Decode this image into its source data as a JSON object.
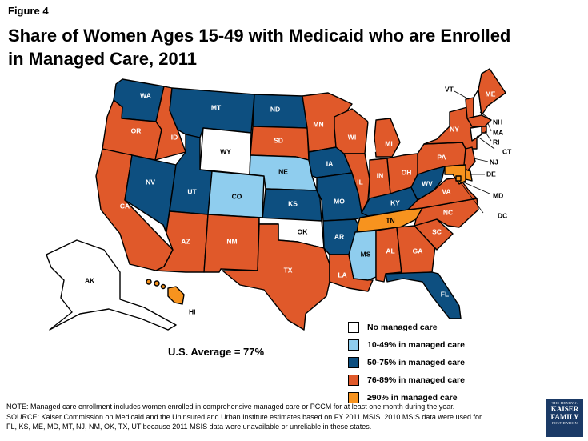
{
  "figure_label": "Figure 4",
  "title": "Share of Women Ages 15-49 with Medicaid who are Enrolled in Managed Care, 2011",
  "us_average": "U.S. Average = 77%",
  "colors": {
    "none": "#ffffff",
    "c10_49": "#8fcdee",
    "c50_75": "#0d4f80",
    "c76_89": "#e0592a",
    "c90": "#f7931e"
  },
  "legend": [
    {
      "label": "No managed care",
      "color": "#ffffff"
    },
    {
      "label": "10-49% in managed care",
      "color": "#8fcdee"
    },
    {
      "label": "50-75% in managed care",
      "color": "#0d4f80"
    },
    {
      "label": "76-89% in managed care",
      "color": "#e0592a"
    },
    {
      "label": "≥90% in managed care",
      "color": "#f7931e"
    }
  ],
  "states": [
    {
      "abbr": "WA",
      "category": "c50_75"
    },
    {
      "abbr": "OR",
      "category": "c76_89"
    },
    {
      "abbr": "CA",
      "category": "c76_89"
    },
    {
      "abbr": "ID",
      "category": "c76_89"
    },
    {
      "abbr": "NV",
      "category": "c50_75"
    },
    {
      "abbr": "MT",
      "category": "c50_75"
    },
    {
      "abbr": "WY",
      "category": "none"
    },
    {
      "abbr": "UT",
      "category": "c50_75"
    },
    {
      "abbr": "AZ",
      "category": "c76_89"
    },
    {
      "abbr": "CO",
      "category": "c10_49"
    },
    {
      "abbr": "NM",
      "category": "c76_89"
    },
    {
      "abbr": "ND",
      "category": "c50_75"
    },
    {
      "abbr": "SD",
      "category": "c76_89"
    },
    {
      "abbr": "NE",
      "category": "c10_49"
    },
    {
      "abbr": "KS",
      "category": "c50_75"
    },
    {
      "abbr": "OK",
      "category": "none"
    },
    {
      "abbr": "TX",
      "category": "c76_89"
    },
    {
      "abbr": "MN",
      "category": "c76_89"
    },
    {
      "abbr": "IA",
      "category": "c50_75"
    },
    {
      "abbr": "MO",
      "category": "c50_75"
    },
    {
      "abbr": "AR",
      "category": "c50_75"
    },
    {
      "abbr": "LA",
      "category": "c76_89"
    },
    {
      "abbr": "WI",
      "category": "c76_89"
    },
    {
      "abbr": "IL",
      "category": "c76_89"
    },
    {
      "abbr": "MI",
      "category": "c76_89"
    },
    {
      "abbr": "IN",
      "category": "c76_89"
    },
    {
      "abbr": "OH",
      "category": "c76_89"
    },
    {
      "abbr": "KY",
      "category": "c50_75"
    },
    {
      "abbr": "TN",
      "category": "c90"
    },
    {
      "abbr": "MS",
      "category": "c10_49"
    },
    {
      "abbr": "AL",
      "category": "c76_89"
    },
    {
      "abbr": "GA",
      "category": "c76_89"
    },
    {
      "abbr": "FL",
      "category": "c50_75"
    },
    {
      "abbr": "SC",
      "category": "c76_89"
    },
    {
      "abbr": "NC",
      "category": "c76_89"
    },
    {
      "abbr": "VA",
      "category": "c76_89"
    },
    {
      "abbr": "WV",
      "category": "c50_75"
    },
    {
      "abbr": "PA",
      "category": "c76_89"
    },
    {
      "abbr": "NY",
      "category": "c76_89"
    },
    {
      "abbr": "VT",
      "category": "c76_89"
    },
    {
      "abbr": "NH",
      "category": "none"
    },
    {
      "abbr": "ME",
      "category": "c76_89"
    },
    {
      "abbr": "MA",
      "category": "c76_89"
    },
    {
      "abbr": "RI",
      "category": "c76_89"
    },
    {
      "abbr": "CT",
      "category": "none"
    },
    {
      "abbr": "NJ",
      "category": "c76_89"
    },
    {
      "abbr": "DE",
      "category": "c90"
    },
    {
      "abbr": "MD",
      "category": "c90"
    },
    {
      "abbr": "DC",
      "category": "c90"
    },
    {
      "abbr": "AK",
      "category": "none"
    },
    {
      "abbr": "HI",
      "category": "c90"
    }
  ],
  "footer": {
    "note": "NOTE: Managed care enrollment includes women enrolled in comprehensive managed care or PCCM  for at least one month during the year.",
    "source1": "SOURCE: Kaiser Commission on Medicaid and the Uninsured and Urban Institute estimates based on  FY 2011 MSIS.  2010 MSIS data were used for",
    "source2": "FL, KS, ME, MD, MT, NJ, NM, OK, TX, UT because 2011 MSIS data were unavailable or unreliable in these states."
  },
  "logo": {
    "line1": "THE HENRY J.",
    "line2": "KAISER",
    "line3": "FAMILY",
    "line4": "FOUNDATION"
  }
}
